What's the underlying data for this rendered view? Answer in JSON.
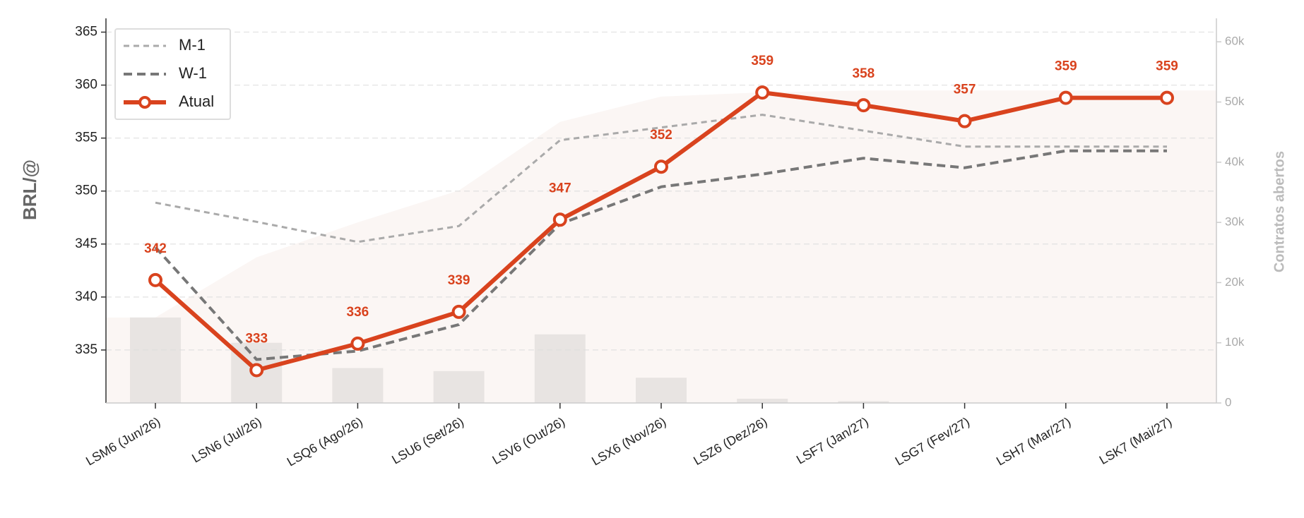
{
  "chart_data": {
    "type": "line",
    "y_label": "BRL/@",
    "y2_label": "Contratos abertos",
    "categories": [
      "LSM6 (Jun/26)",
      "LSN6 (Jul/26)",
      "LSQ6 (Ago/26)",
      "LSU6 (Set/26)",
      "LSV6 (Out/26)",
      "LSX6 (Nov/26)",
      "LSZ6 (Dez/26)",
      "LSF7 (Jan/27)",
      "LSG7 (Fev/27)",
      "LSH7 (Mar/27)",
      "LSK7 (Mai/27)"
    ],
    "series": [
      {
        "name": "M-1",
        "color": "#aaaaaa",
        "dash": "8,6",
        "width": 3,
        "values": [
          348.9,
          347.1,
          345.2,
          346.7,
          354.8,
          356.0,
          357.2,
          355.7,
          354.2,
          354.2,
          354.2
        ]
      },
      {
        "name": "W-1",
        "color": "#777777",
        "dash": "12,7",
        "width": 4,
        "values": [
          344.7,
          334.1,
          334.9,
          337.4,
          346.9,
          350.4,
          351.6,
          353.1,
          352.2,
          353.8,
          353.8
        ]
      },
      {
        "name": "Atual",
        "color": "#d9431e",
        "width": 6,
        "markers": true,
        "values": [
          341.6,
          333.1,
          335.6,
          338.6,
          347.3,
          352.3,
          359.3,
          358.1,
          356.6,
          358.8,
          358.8
        ],
        "value_labels": [
          "342",
          "333",
          "336",
          "339",
          "347",
          "352",
          "359",
          "358",
          "357",
          "359",
          "359"
        ]
      }
    ],
    "open_interest": {
      "axis": "y2",
      "color": "#e8e4e2",
      "area_color": "#fbf6f4",
      "values": [
        14200,
        10000,
        5800,
        5300,
        11400,
        4200,
        700,
        300,
        0,
        0,
        0
      ]
    },
    "ylim": [
      330,
      366.3
    ],
    "yticks": [
      335,
      340,
      345,
      350,
      355,
      360,
      365
    ],
    "y2lim": [
      0,
      63900
    ],
    "y2ticks": [
      0,
      {
        "value": 10000,
        "label": "10k"
      },
      {
        "value": 20000,
        "label": "20k"
      },
      {
        "value": 30000,
        "label": "30k"
      },
      {
        "value": 40000,
        "label": "40k"
      },
      {
        "value": 50000,
        "label": "50k"
      },
      {
        "value": 60000,
        "label": "60k"
      }
    ],
    "grid": true,
    "legend": "upper-left"
  }
}
